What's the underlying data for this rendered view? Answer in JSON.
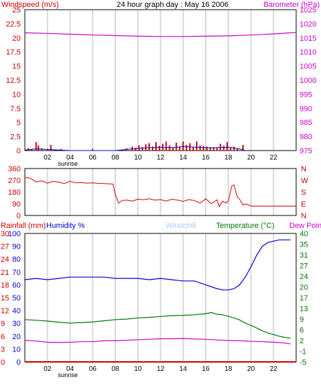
{
  "colors": {
    "wind": "#cc0000",
    "baro": "#cc00cc",
    "dir": "#cc0000",
    "rain": "#cc0000",
    "hum": "#0000cc",
    "temp": "#007700",
    "dew": "#cc00cc",
    "chill": "#b0c8ff",
    "grid": "#d8d8d8",
    "axis": "#000000"
  },
  "chart_data": [
    {
      "type": "bar",
      "title": "24 hour graph day : May 16 2006",
      "left_label": "Windspeed (m/s)",
      "right_label": "Barometer (hPa)",
      "x_ticks": [
        "02",
        "04",
        "06",
        "08",
        "10",
        "12",
        "14",
        "16",
        "18",
        "20",
        "22"
      ],
      "x_annotation": "sunrise",
      "left_ticks": [
        "0",
        "2.5",
        "5",
        "7.5",
        "10",
        "12.5",
        "15",
        "17.5",
        "20",
        "22.5",
        "25"
      ],
      "right_ticks": [
        "975",
        "980",
        "985",
        "990",
        "995",
        "1000",
        "1005",
        "1010",
        "1015",
        "1020",
        "1025"
      ],
      "ylim_left": [
        0,
        25
      ],
      "ylim_right": [
        975,
        1025
      ],
      "xlim": [
        0,
        24
      ],
      "grid": true,
      "series": [
        {
          "name": "Barometer",
          "axis": "right",
          "x": [
            0,
            2,
            4,
            6,
            8,
            10,
            12,
            14,
            16,
            18,
            20,
            22,
            24
          ],
          "y": [
            1016.8,
            1016.6,
            1016.3,
            1016.0,
            1015.8,
            1015.6,
            1015.5,
            1015.5,
            1015.6,
            1015.7,
            1016.0,
            1016.4,
            1016.9
          ]
        },
        {
          "name": "Windspeed",
          "axis": "left",
          "kind": "bars",
          "x": [
            0.3,
            0.6,
            1.0,
            1.2,
            1.5,
            2.0,
            2.3,
            3.2,
            6.0,
            9.0,
            9.5,
            9.8,
            10.1,
            10.4,
            10.7,
            11.0,
            11.3,
            11.6,
            11.9,
            12.2,
            12.5,
            12.8,
            13.1,
            13.4,
            13.7,
            14.0,
            14.3,
            14.6,
            14.9,
            15.2,
            15.5,
            15.8,
            16.1,
            16.4,
            16.7,
            17.0,
            17.3,
            17.6,
            17.9,
            18.2,
            18.5,
            18.8,
            19.3
          ],
          "y": [
            0.4,
            0.3,
            1.5,
            0.9,
            0.4,
            0.3,
            1.0,
            0.3,
            0.3,
            0.4,
            0.7,
            0.5,
            0.9,
            0.6,
            1.1,
            1.3,
            0.7,
            1.5,
            0.8,
            1.2,
            1.6,
            0.9,
            0.5,
            1.4,
            0.7,
            1.6,
            1.0,
            1.3,
            0.6,
            1.6,
            0.9,
            0.8,
            0.7,
            0.6,
            0.6,
            0.5,
            1.2,
            0.8,
            1.5,
            0.5,
            0.7,
            0.3,
            1.0
          ]
        },
        {
          "name": "Wind avg",
          "axis": "left",
          "kind": "line",
          "x": [
            0,
            1,
            2,
            3,
            4,
            6,
            8,
            9,
            10,
            11,
            12,
            13,
            14,
            15,
            16,
            17,
            18,
            19,
            19.5
          ],
          "y": [
            0.1,
            0.3,
            0.2,
            0.1,
            0.0,
            0.0,
            0.0,
            0.2,
            0.4,
            0.5,
            0.6,
            0.5,
            0.7,
            0.6,
            0.5,
            0.5,
            0.6,
            0.3,
            0.0
          ]
        }
      ]
    },
    {
      "type": "line",
      "left_ticks": [
        "0",
        "90",
        "180",
        "270",
        "360"
      ],
      "right_ticks": [
        "N",
        "E",
        "S",
        "W",
        "N"
      ],
      "ylim": [
        0,
        360
      ],
      "xlim": [
        0,
        24
      ],
      "grid": true,
      "series": [
        {
          "name": "Wind direction",
          "x": [
            0,
            0.5,
            1,
            1.5,
            2,
            2.5,
            3,
            3.5,
            4,
            4.5,
            5,
            5.5,
            6,
            6.5,
            7,
            7.5,
            7.8,
            8,
            8.3,
            8.6,
            9,
            9.5,
            10,
            10.5,
            11,
            11.5,
            12,
            12.5,
            13,
            13.5,
            14,
            14.5,
            15,
            15.5,
            16,
            16.5,
            17,
            17.2,
            17.5,
            17.8,
            18,
            18.3,
            18.5,
            18.8,
            19,
            19.3,
            19.6,
            20,
            21,
            22,
            24
          ],
          "y": [
            292,
            285,
            258,
            265,
            248,
            262,
            255,
            245,
            262,
            250,
            252,
            248,
            250,
            246,
            245,
            243,
            240,
            160,
            95,
            115,
            118,
            110,
            125,
            120,
            128,
            118,
            122,
            110,
            125,
            118,
            108,
            122,
            115,
            95,
            128,
            90,
            120,
            68,
            110,
            95,
            112,
            225,
            235,
            140,
            125,
            80,
            88,
            72,
            72,
            72,
            72
          ]
        }
      ]
    },
    {
      "type": "line",
      "labels": [
        "Rainfall (mm)",
        "Humidity %",
        "Windchill",
        "Temperature (°C)",
        "Dew Point"
      ],
      "rain_ticks": [
        "0",
        "3",
        "6",
        "9",
        "12",
        "15",
        "18",
        "21",
        "24",
        "27",
        "30"
      ],
      "humidity_ticks": [
        "0",
        "10",
        "20",
        "30",
        "40",
        "50",
        "60",
        "70",
        "80",
        "90",
        "100"
      ],
      "temp_ticks": [
        "-5",
        "-1",
        "2",
        "6",
        "9",
        "13",
        "17",
        "20",
        "24",
        "27",
        "31",
        "35",
        "40"
      ],
      "x_ticks": [
        "02",
        "04",
        "06",
        "08",
        "10",
        "12",
        "14",
        "16",
        "18",
        "20",
        "22"
      ],
      "x_annotation": "sunrise",
      "ylim_rain": [
        0,
        30
      ],
      "ylim_humidity": [
        0,
        100
      ],
      "ylim_temp": [
        -5,
        40
      ],
      "xlim": [
        0,
        24
      ],
      "grid": true,
      "series": [
        {
          "name": "Humidity",
          "axis": "humidity",
          "x": [
            0,
            1,
            2,
            3,
            4,
            5,
            6,
            7,
            8,
            9,
            10,
            11,
            12,
            13,
            14,
            15,
            16,
            17,
            17.5,
            18,
            18.5,
            19,
            19.5,
            20,
            20.5,
            21,
            21.5,
            22,
            22.5,
            23,
            23.5
          ],
          "y": [
            64,
            65,
            64,
            65,
            66,
            66,
            66,
            66,
            65,
            65,
            65,
            64,
            65,
            64,
            63,
            63,
            60,
            57,
            56,
            56,
            57,
            60,
            66,
            74,
            83,
            90,
            93,
            94,
            95,
            95,
            95
          ]
        },
        {
          "name": "Temperature",
          "axis": "temp",
          "x": [
            0,
            1,
            2,
            3,
            4,
            5,
            6,
            7,
            8,
            9,
            10,
            11,
            12,
            13,
            14,
            15,
            16,
            16.5,
            17,
            17.5,
            18,
            18.5,
            19,
            19.5,
            20,
            20.5,
            21,
            21.5,
            22,
            22.5,
            23,
            23.5
          ],
          "y": [
            9.8,
            9.6,
            9.3,
            8.9,
            8.6,
            8.8,
            9.0,
            9.4,
            9.8,
            10.0,
            10.4,
            10.6,
            10.9,
            11.2,
            11.3,
            11.5,
            11.9,
            12.3,
            11.7,
            11.5,
            11.0,
            10.4,
            9.7,
            8.6,
            7.8,
            6.9,
            5.9,
            5.1,
            4.6,
            4.0,
            3.6,
            3.3
          ]
        },
        {
          "name": "Dew Point",
          "axis": "temp",
          "x": [
            0,
            1,
            2,
            3,
            4,
            5,
            6,
            7,
            8,
            9,
            10,
            11,
            12,
            13,
            14,
            15,
            16,
            17,
            18,
            19,
            20,
            21,
            22,
            23,
            23.5
          ],
          "y": [
            2.5,
            2.3,
            1.9,
            1.8,
            1.9,
            2.1,
            2.1,
            2.4,
            2.4,
            2.6,
            2.8,
            2.9,
            3.1,
            3.1,
            3.2,
            3.0,
            2.9,
            2.7,
            2.5,
            2.4,
            2.2,
            2.1,
            1.9,
            1.6,
            1.3
          ]
        },
        {
          "name": "Rainfall",
          "axis": "rain",
          "x": [
            0,
            24
          ],
          "y": [
            0,
            0
          ]
        }
      ]
    }
  ]
}
